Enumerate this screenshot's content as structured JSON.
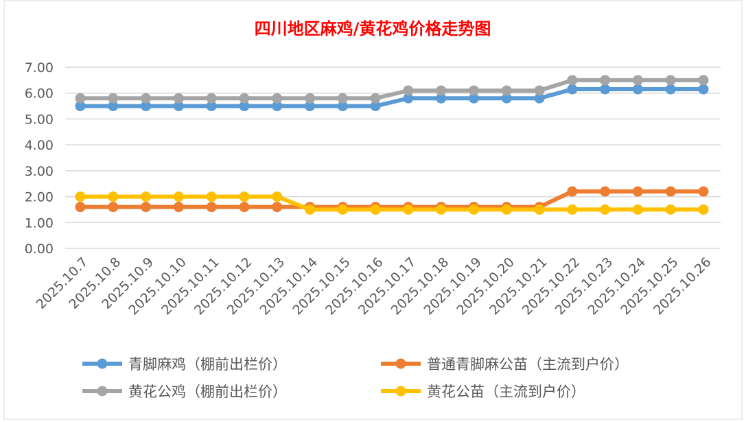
{
  "chart_data": {
    "type": "line",
    "title": "四川地区麻鸡/黄花鸡价格走势图",
    "xlabel": "",
    "ylabel": "",
    "ylim": [
      0,
      7
    ],
    "yticks": [
      "0.00",
      "1.00",
      "2.00",
      "3.00",
      "4.00",
      "5.00",
      "6.00",
      "7.00"
    ],
    "grid": true,
    "legend_position": "bottom",
    "categories": [
      "2025.10.7",
      "2025.10.8",
      "2025.10.9",
      "2025.10.10",
      "2025.10.11",
      "2025.10.12",
      "2025.10.13",
      "2025.10.14",
      "2025.10.15",
      "2025.10.16",
      "2025.10.17",
      "2025.10.18",
      "2025.10.19",
      "2025.10.20",
      "2025.10.21",
      "2025.10.22",
      "2025.10.23",
      "2025.10.24",
      "2025.10.25",
      "2025.10.26"
    ],
    "series": [
      {
        "name": "青脚麻鸡（棚前出栏价）",
        "color": "#5b9bd5",
        "values": [
          5.5,
          5.5,
          5.5,
          5.5,
          5.5,
          5.5,
          5.5,
          5.5,
          5.5,
          5.5,
          5.8,
          5.8,
          5.8,
          5.8,
          5.8,
          6.15,
          6.15,
          6.15,
          6.15,
          6.15
        ]
      },
      {
        "name": "普通青脚麻公苗（主流到户价）",
        "color": "#ed7d31",
        "values": [
          1.6,
          1.6,
          1.6,
          1.6,
          1.6,
          1.6,
          1.6,
          1.6,
          1.6,
          1.6,
          1.6,
          1.6,
          1.6,
          1.6,
          1.6,
          2.2,
          2.2,
          2.2,
          2.2,
          2.2
        ]
      },
      {
        "name": "黄花公鸡（棚前出栏价）",
        "color": "#a5a5a5",
        "values": [
          5.8,
          5.8,
          5.8,
          5.8,
          5.8,
          5.8,
          5.8,
          5.8,
          5.8,
          5.8,
          6.1,
          6.1,
          6.1,
          6.1,
          6.1,
          6.5,
          6.5,
          6.5,
          6.5,
          6.5
        ]
      },
      {
        "name": "黄花公苗（主流到户价）",
        "color": "#ffc000",
        "values": [
          2.0,
          2.0,
          2.0,
          2.0,
          2.0,
          2.0,
          2.0,
          1.5,
          1.5,
          1.5,
          1.5,
          1.5,
          1.5,
          1.5,
          1.5,
          1.5,
          1.5,
          1.5,
          1.5,
          1.5
        ]
      }
    ]
  }
}
